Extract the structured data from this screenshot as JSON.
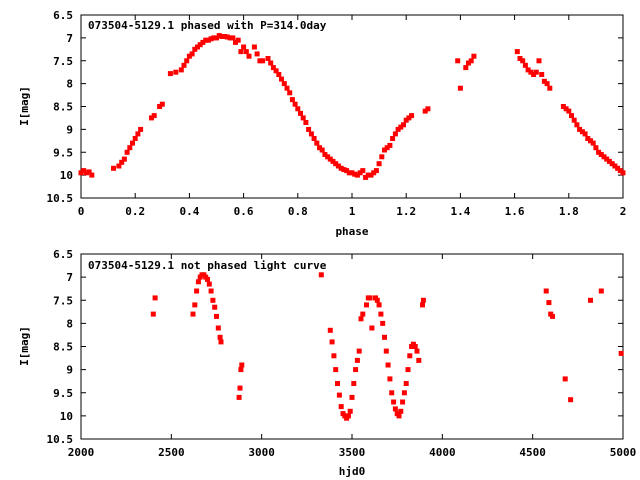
{
  "chart_data": [
    {
      "type": "scatter",
      "title": "073504-5129.1 phased with P=314.0day",
      "xlabel": "phase",
      "ylabel": "I[mag]",
      "xlim": [
        0,
        2
      ],
      "ylim": [
        10.5,
        6.5
      ],
      "y_inverted": true,
      "xticks": [
        "0",
        "0.2",
        "0.4",
        "0.6",
        "0.8",
        "1",
        "1.2",
        "1.4",
        "1.6",
        "1.8",
        "2"
      ],
      "xtick_values": [
        0,
        0.2,
        0.4,
        0.6,
        0.8,
        1.0,
        1.2,
        1.4,
        1.6,
        1.8,
        2.0
      ],
      "yticks": [
        "6.5",
        "7",
        "7.5",
        "8",
        "8.5",
        "9",
        "9.5",
        "10",
        "10.5"
      ],
      "ytick_values": [
        6.5,
        7,
        7.5,
        8,
        8.5,
        9,
        9.5,
        10,
        10.5
      ],
      "marker_color": "#ff0000",
      "marker": "filled-square",
      "grid": false,
      "series": [
        {
          "x": [
            0.0,
            0.01,
            0.02,
            0.03,
            0.04,
            0.12,
            0.14,
            0.15,
            0.16,
            0.17,
            0.18,
            0.19,
            0.2,
            0.21,
            0.22,
            0.26,
            0.27,
            0.29,
            0.3,
            0.33,
            0.35,
            0.37,
            0.38,
            0.39,
            0.4,
            0.41,
            0.42,
            0.43,
            0.44,
            0.45,
            0.46,
            0.47,
            0.48,
            0.49,
            0.5,
            0.51,
            0.52,
            0.53,
            0.54,
            0.55,
            0.56,
            0.57,
            0.58,
            0.59,
            0.6,
            0.61,
            0.62,
            0.64,
            0.65,
            0.66,
            0.67,
            0.69,
            0.7,
            0.71,
            0.72,
            0.73,
            0.74,
            0.75,
            0.76,
            0.77,
            0.78,
            0.79,
            0.8,
            0.81,
            0.82,
            0.83,
            0.84,
            0.85,
            0.86,
            0.87,
            0.88,
            0.89,
            0.9,
            0.91,
            0.92,
            0.93,
            0.94,
            0.95,
            0.96,
            0.97,
            0.98,
            0.99,
            1.0,
            1.01,
            1.02,
            1.03,
            1.04,
            1.05,
            1.06,
            1.07,
            1.08,
            1.09,
            1.1,
            1.11,
            1.12,
            1.13,
            1.14,
            1.15,
            1.16,
            1.17,
            1.18,
            1.19,
            1.2,
            1.21,
            1.22,
            1.27,
            1.28,
            1.39,
            1.4,
            1.42,
            1.43,
            1.44,
            1.45,
            1.61,
            1.62,
            1.63,
            1.64,
            1.65,
            1.66,
            1.67,
            1.68,
            1.69,
            1.7,
            1.71,
            1.72,
            1.73,
            1.78,
            1.79,
            1.8,
            1.81,
            1.82,
            1.83,
            1.84,
            1.85,
            1.86,
            1.87,
            1.88,
            1.89,
            1.9,
            1.91,
            1.92,
            1.93,
            1.94,
            1.95,
            1.96,
            1.97,
            1.98,
            1.99,
            2.0
          ],
          "y": [
            9.95,
            9.9,
            9.95,
            9.93,
            10.0,
            9.85,
            9.8,
            9.72,
            9.65,
            9.5,
            9.4,
            9.3,
            9.2,
            9.1,
            9.0,
            8.75,
            8.7,
            8.5,
            8.45,
            7.78,
            7.75,
            7.7,
            7.6,
            7.5,
            7.4,
            7.35,
            7.25,
            7.2,
            7.15,
            7.1,
            7.05,
            7.05,
            7.02,
            7.0,
            7.0,
            6.95,
            6.97,
            6.97,
            6.98,
            7.0,
            7.0,
            7.1,
            7.05,
            7.3,
            7.2,
            7.3,
            7.4,
            7.2,
            7.35,
            7.5,
            7.5,
            7.45,
            7.55,
            7.65,
            7.72,
            7.8,
            7.9,
            8.0,
            8.1,
            8.2,
            8.35,
            8.45,
            8.55,
            8.65,
            8.75,
            8.85,
            9.0,
            9.1,
            9.2,
            9.3,
            9.4,
            9.45,
            9.55,
            9.6,
            9.65,
            9.7,
            9.75,
            9.8,
            9.85,
            9.88,
            9.9,
            9.95,
            9.95,
            9.98,
            10.0,
            9.95,
            9.9,
            10.05,
            10.0,
            10.0,
            9.95,
            9.9,
            9.75,
            9.6,
            9.45,
            9.4,
            9.35,
            9.2,
            9.1,
            9.0,
            8.95,
            8.9,
            8.8,
            8.75,
            8.7,
            8.6,
            8.55,
            7.5,
            8.1,
            7.65,
            7.55,
            7.5,
            7.4,
            7.3,
            7.45,
            7.5,
            7.6,
            7.7,
            7.75,
            7.8,
            7.75,
            7.5,
            7.8,
            7.95,
            8.0,
            8.1,
            8.5,
            8.55,
            8.6,
            8.7,
            8.8,
            8.9,
            9.0,
            9.05,
            9.1,
            9.2,
            9.25,
            9.3,
            9.4,
            9.5,
            9.55,
            9.6,
            9.65,
            9.7,
            9.75,
            9.8,
            9.85,
            9.9,
            9.95
          ]
        }
      ]
    },
    {
      "type": "scatter",
      "title": "073504-5129.1 not phased light curve",
      "xlabel": "hjd0",
      "ylabel": "I[mag]",
      "xlim": [
        2000,
        5000
      ],
      "ylim": [
        10.5,
        6.5
      ],
      "y_inverted": true,
      "xticks": [
        "2000",
        "2500",
        "3000",
        "3500",
        "4000",
        "4500",
        "5000"
      ],
      "xtick_values": [
        2000,
        2500,
        3000,
        3500,
        4000,
        4500,
        5000
      ],
      "yticks": [
        "6.5",
        "7",
        "7.5",
        "8",
        "8.5",
        "9",
        "9.5",
        "10",
        "10.5"
      ],
      "ytick_values": [
        6.5,
        7,
        7.5,
        8,
        8.5,
        9,
        9.5,
        10,
        10.5
      ],
      "marker_color": "#ff0000",
      "marker": "filled-square",
      "grid": false,
      "series": [
        {
          "x": [
            2400,
            2410,
            2620,
            2630,
            2640,
            2650,
            2660,
            2670,
            2680,
            2690,
            2700,
            2710,
            2720,
            2730,
            2740,
            2750,
            2760,
            2770,
            2775,
            2875,
            2880,
            2885,
            2890,
            3330,
            3380,
            3390,
            3400,
            3410,
            3420,
            3430,
            3440,
            3450,
            3460,
            3470,
            3480,
            3490,
            3500,
            3510,
            3520,
            3530,
            3540,
            3550,
            3560,
            3580,
            3590,
            3600,
            3610,
            3630,
            3640,
            3650,
            3660,
            3670,
            3680,
            3690,
            3700,
            3710,
            3720,
            3730,
            3740,
            3750,
            3760,
            3770,
            3780,
            3790,
            3800,
            3810,
            3820,
            3830,
            3840,
            3850,
            3860,
            3870,
            3890,
            3895,
            4575,
            4590,
            4600,
            4610,
            4680,
            4710,
            4820,
            4880,
            4990
          ],
          "y": [
            7.8,
            7.45,
            7.8,
            7.6,
            7.3,
            7.1,
            7.0,
            6.95,
            6.95,
            7.0,
            7.05,
            7.15,
            7.3,
            7.5,
            7.65,
            7.85,
            8.1,
            8.3,
            8.4,
            9.6,
            9.4,
            9.0,
            8.9,
            6.95,
            8.15,
            8.4,
            8.7,
            9.0,
            9.3,
            9.55,
            9.8,
            9.95,
            10.0,
            10.05,
            10.0,
            9.9,
            9.6,
            9.3,
            9.0,
            8.8,
            8.6,
            7.9,
            7.8,
            7.6,
            7.45,
            7.45,
            8.1,
            7.45,
            7.5,
            7.6,
            7.8,
            8.0,
            8.3,
            8.6,
            8.9,
            9.2,
            9.5,
            9.7,
            9.85,
            9.95,
            10.0,
            9.9,
            9.7,
            9.5,
            9.3,
            9.0,
            8.7,
            8.5,
            8.45,
            8.5,
            8.6,
            8.8,
            7.6,
            7.5,
            7.3,
            7.55,
            7.8,
            7.85,
            9.2,
            9.65,
            7.5,
            7.3,
            8.65
          ]
        }
      ]
    }
  ]
}
